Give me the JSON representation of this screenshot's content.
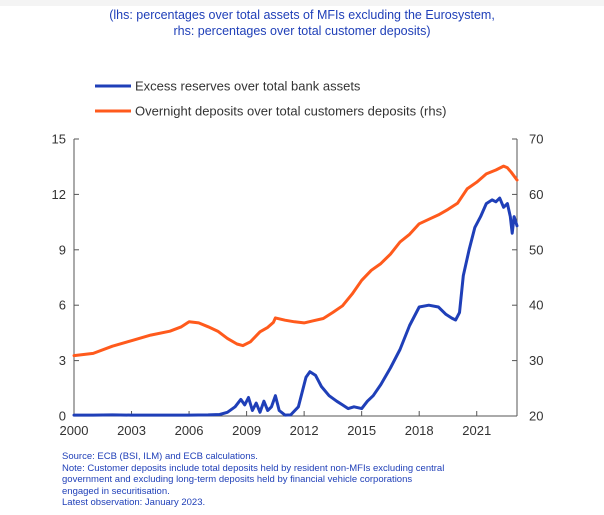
{
  "header": {
    "subtitle_line1": "(lhs: percentages over total assets of MFIs excluding the Eurosystem,",
    "subtitle_line2": "rhs: percentages over total customer deposits)"
  },
  "notes": {
    "source": "Source: ECB (BSI, ILM) and ECB calculations.",
    "note_line1": "Note: Customer deposits include total deposits held by resident non-MFIs excluding central",
    "note_line2": "government and excluding long-term deposits held by financial vehicle corporations",
    "note_line3": "engaged in securitisation.",
    "latest": "Latest observation: January 2023."
  },
  "colors": {
    "excess_reserves": "#1f3fb8",
    "overnight_deposits": "#ff5a1c",
    "text_blue": "#1f3fb8",
    "axis": "#555555"
  },
  "chart_data": {
    "type": "line",
    "title": "",
    "xlabel": "",
    "ylabel": "",
    "legend_position": "top-left",
    "grid": false,
    "x_ticks": [
      "2000",
      "2003",
      "2006",
      "2009",
      "2012",
      "2015",
      "2018",
      "2021"
    ],
    "xlim": [
      2000.0,
      2023.1
    ],
    "left_axis": {
      "ylim": [
        0,
        15
      ],
      "ticks": [
        "0",
        "3",
        "6",
        "9",
        "12",
        "15"
      ]
    },
    "right_axis": {
      "ylim": [
        20,
        70
      ],
      "ticks": [
        "20",
        "30",
        "40",
        "50",
        "60",
        "70"
      ]
    },
    "series": [
      {
        "name": "Excess reserves over total bank assets",
        "axis": "left",
        "color": "#1f3fb8",
        "points": [
          [
            2000.0,
            0.05
          ],
          [
            2001.0,
            0.05
          ],
          [
            2002.0,
            0.06
          ],
          [
            2003.0,
            0.05
          ],
          [
            2004.0,
            0.05
          ],
          [
            2005.0,
            0.05
          ],
          [
            2006.0,
            0.05
          ],
          [
            2007.0,
            0.06
          ],
          [
            2007.6,
            0.08
          ],
          [
            2008.0,
            0.2
          ],
          [
            2008.4,
            0.5
          ],
          [
            2008.7,
            0.9
          ],
          [
            2008.9,
            0.6
          ],
          [
            2009.1,
            1.0
          ],
          [
            2009.3,
            0.3
          ],
          [
            2009.5,
            0.7
          ],
          [
            2009.7,
            0.2
          ],
          [
            2009.9,
            0.8
          ],
          [
            2010.1,
            0.3
          ],
          [
            2010.3,
            0.5
          ],
          [
            2010.5,
            1.1
          ],
          [
            2010.7,
            0.3
          ],
          [
            2011.0,
            0.05
          ],
          [
            2011.3,
            0.06
          ],
          [
            2011.7,
            0.5
          ],
          [
            2011.9,
            1.3
          ],
          [
            2012.1,
            2.1
          ],
          [
            2012.3,
            2.4
          ],
          [
            2012.6,
            2.2
          ],
          [
            2012.9,
            1.6
          ],
          [
            2013.3,
            1.1
          ],
          [
            2013.7,
            0.8
          ],
          [
            2014.0,
            0.6
          ],
          [
            2014.3,
            0.4
          ],
          [
            2014.6,
            0.5
          ],
          [
            2015.0,
            0.4
          ],
          [
            2015.3,
            0.8
          ],
          [
            2015.6,
            1.1
          ],
          [
            2016.0,
            1.7
          ],
          [
            2016.5,
            2.6
          ],
          [
            2017.0,
            3.6
          ],
          [
            2017.5,
            4.9
          ],
          [
            2018.0,
            5.9
          ],
          [
            2018.5,
            6.0
          ],
          [
            2019.0,
            5.9
          ],
          [
            2019.4,
            5.5
          ],
          [
            2019.7,
            5.3
          ],
          [
            2019.9,
            5.2
          ],
          [
            2020.1,
            5.6
          ],
          [
            2020.3,
            7.6
          ],
          [
            2020.6,
            9.0
          ],
          [
            2020.9,
            10.2
          ],
          [
            2021.2,
            10.8
          ],
          [
            2021.5,
            11.5
          ],
          [
            2021.8,
            11.7
          ],
          [
            2022.0,
            11.6
          ],
          [
            2022.2,
            11.8
          ],
          [
            2022.4,
            11.3
          ],
          [
            2022.6,
            11.5
          ],
          [
            2022.75,
            10.8
          ],
          [
            2022.85,
            9.9
          ],
          [
            2022.95,
            10.8
          ],
          [
            2023.1,
            10.3
          ]
        ]
      },
      {
        "name": "Overnight deposits over total customers deposits (rhs)",
        "axis": "right",
        "color": "#ff5a1c",
        "points": [
          [
            2000.0,
            30.9
          ],
          [
            2001.0,
            31.3
          ],
          [
            2002.0,
            32.6
          ],
          [
            2003.0,
            33.6
          ],
          [
            2004.0,
            34.6
          ],
          [
            2005.0,
            35.3
          ],
          [
            2005.6,
            36.1
          ],
          [
            2006.0,
            37.0
          ],
          [
            2006.5,
            36.8
          ],
          [
            2007.0,
            36.1
          ],
          [
            2007.5,
            35.3
          ],
          [
            2008.0,
            34.0
          ],
          [
            2008.5,
            33.0
          ],
          [
            2008.8,
            32.7
          ],
          [
            2009.2,
            33.4
          ],
          [
            2009.7,
            35.2
          ],
          [
            2010.1,
            36.0
          ],
          [
            2010.4,
            36.9
          ],
          [
            2010.5,
            37.7
          ],
          [
            2011.0,
            37.3
          ],
          [
            2011.5,
            37.0
          ],
          [
            2012.0,
            36.8
          ],
          [
            2012.5,
            37.2
          ],
          [
            2013.0,
            37.6
          ],
          [
            2013.5,
            38.7
          ],
          [
            2014.0,
            39.9
          ],
          [
            2014.5,
            42.0
          ],
          [
            2015.0,
            44.5
          ],
          [
            2015.5,
            46.3
          ],
          [
            2016.0,
            47.5
          ],
          [
            2016.5,
            49.2
          ],
          [
            2017.0,
            51.4
          ],
          [
            2017.5,
            52.8
          ],
          [
            2018.0,
            54.7
          ],
          [
            2018.5,
            55.5
          ],
          [
            2019.0,
            56.3
          ],
          [
            2019.5,
            57.3
          ],
          [
            2020.0,
            58.4
          ],
          [
            2020.5,
            61.0
          ],
          [
            2021.0,
            62.2
          ],
          [
            2021.5,
            63.7
          ],
          [
            2022.0,
            64.4
          ],
          [
            2022.4,
            65.1
          ],
          [
            2022.6,
            64.8
          ],
          [
            2022.8,
            64.0
          ],
          [
            2023.1,
            62.6
          ]
        ]
      }
    ]
  }
}
